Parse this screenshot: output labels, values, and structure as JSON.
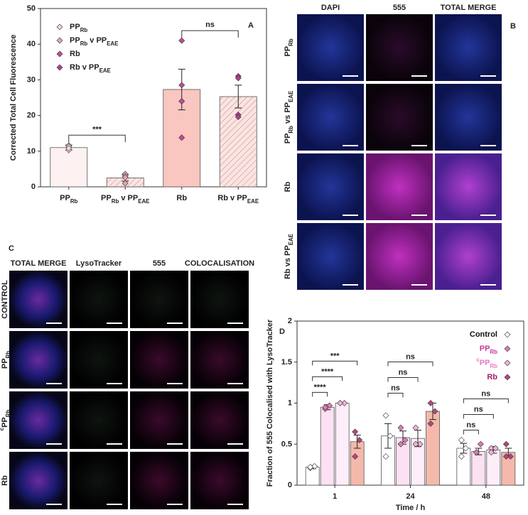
{
  "chart_data": [
    {
      "type": "bar",
      "panel_label": "A",
      "y_label": "Corrected Total Cell Fluorescence",
      "categories": [
        "PP_{Rb}",
        "PP_{Rb} v PP_{EAE}",
        "Rb",
        "Rb v PP_{EAE}"
      ],
      "values": [
        11,
        2.5,
        27.3,
        25.3
      ],
      "errors": [
        0.7,
        0.9,
        5.7,
        3.2
      ],
      "points": [
        [
          10.3,
          11.6,
          11.3,
          10.8
        ],
        [
          1.0,
          3.6,
          3.0,
          2.6
        ],
        [
          41,
          28.5,
          24,
          13.8
        ],
        [
          31,
          30.5,
          20.2,
          19.6
        ]
      ],
      "bar_colors": [
        "#fdf1f1",
        "#fbeaea",
        "#f9c6c0",
        "#f9d3cd"
      ],
      "hatch": [
        false,
        true,
        false,
        true
      ],
      "legend": [
        {
          "name": "PP_{Rb}",
          "color": "#f6d5dd"
        },
        {
          "name": "PP_{Rb} v PP_{EAE}",
          "color": "#e8a3b8"
        },
        {
          "name": "Rb",
          "color": "#c8479a"
        },
        {
          "name": "Rb v PP_{EAE}",
          "color": "#b53e92"
        }
      ],
      "brackets": [
        {
          "label": "***"
        },
        {
          "label": "ns"
        }
      ],
      "ylim": [
        0,
        50
      ],
      "yticks": [
        0,
        10,
        20,
        30,
        40,
        50
      ]
    },
    {
      "type": "bar",
      "panel_label": "D",
      "x_label": "Time / h",
      "y_label": "Fraction of 555 Colocalised with LysoTracker",
      "categories": [
        "1",
        "24",
        "48"
      ],
      "series": [
        {
          "name": "Control",
          "color": "#111111",
          "bar_color": "#ffffff",
          "point_color": "#ffffff",
          "values": [
            0.22,
            0.6,
            0.45
          ],
          "errors": [
            0.02,
            0.15,
            0.06
          ],
          "points": [
            [
              0.21,
              0.23,
              0.22
            ],
            [
              0.85,
              0.6,
              0.35
            ],
            [
              0.55,
              0.45,
              0.35
            ]
          ]
        },
        {
          "name": "PP_{Rb}",
          "color": "#c2399d",
          "bar_color": "#fbe1f1",
          "point_color": "#e07ab8",
          "values": [
            0.95,
            0.58,
            0.41
          ],
          "errors": [
            0.03,
            0.08,
            0.04
          ],
          "points": [
            [
              0.93,
              0.97,
              0.95
            ],
            [
              0.7,
              0.55,
              0.5
            ],
            [
              0.4,
              0.5,
              0.4
            ]
          ]
        },
        {
          "name": "^{c}PP_{Rb}",
          "color": "#e879c0",
          "bar_color": "#fdeefa",
          "point_color": "#f2b3d8",
          "values": [
            1.0,
            0.57,
            0.43
          ],
          "errors": [
            0.01,
            0.1,
            0.04
          ],
          "points": [
            [
              1.0,
              1.0,
              1.0
            ],
            [
              0.7,
              0.5,
              0.5
            ],
            [
              0.45,
              0.45,
              0.4
            ]
          ]
        },
        {
          "name": "Rb",
          "color": "#a0226f",
          "bar_color": "#f4b9aa",
          "point_color": "#b8457f",
          "values": [
            0.53,
            0.9,
            0.4
          ],
          "errors": [
            0.08,
            0.1,
            0.05
          ],
          "points": [
            [
              0.65,
              0.55,
              0.35
            ],
            [
              1.0,
              0.9,
              0.75
            ],
            [
              0.5,
              0.35,
              0.35
            ]
          ]
        }
      ],
      "brackets": [
        {
          "label": "****"
        },
        {
          "label": "****"
        },
        {
          "label": "***"
        },
        {
          "label": "ns"
        },
        {
          "label": "ns"
        },
        {
          "label": "ns"
        },
        {
          "label": "ns"
        },
        {
          "label": "ns"
        },
        {
          "label": "ns"
        }
      ],
      "ylim": [
        0,
        2
      ],
      "yticks": [
        0,
        0.5,
        1,
        1.5,
        2
      ]
    }
  ],
  "image_panels": [
    {
      "panel_label": "B",
      "columns": [
        "DAPI",
        "555",
        "TOTAL MERGE"
      ],
      "rows": [
        "PP_{Rb}",
        "PP_{Rb} vs PP_{EAE}",
        "Rb",
        "Rb vs PP_{EAE}"
      ]
    },
    {
      "panel_label": "C",
      "columns": [
        "TOTAL MERGE",
        "LysoTracker",
        "555",
        "COLOCALISATION"
      ],
      "rows": [
        "CONTROL",
        "PP_{Rb}",
        "^{c}PP_{Rb}",
        "Rb"
      ]
    }
  ]
}
